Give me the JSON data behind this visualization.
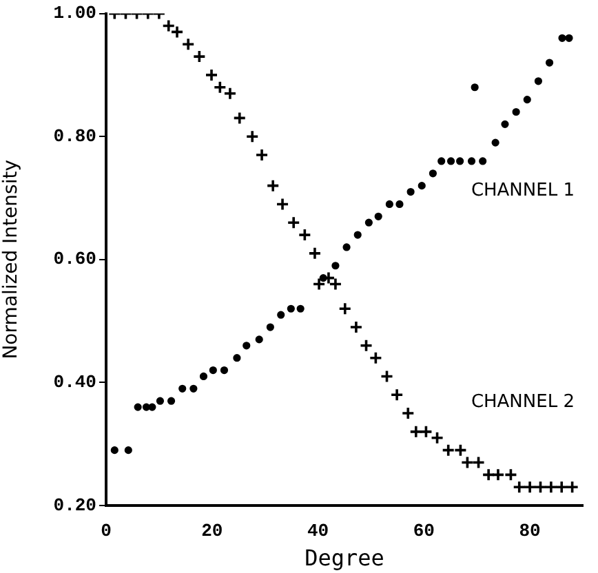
{
  "chart_data": {
    "type": "scatter",
    "xlabel": "Degree",
    "ylabel": "Normalized Intensity",
    "xlim": [
      0,
      90
    ],
    "xticks": [
      0,
      20,
      40,
      60,
      80
    ],
    "ylim": [
      0.2,
      1.0
    ],
    "yticks": [
      {
        "value": 0.2,
        "label": "0.20"
      },
      {
        "value": 0.4,
        "label": "0.40"
      },
      {
        "value": 0.6,
        "label": "0.60"
      },
      {
        "value": 0.8,
        "label": "0.80"
      },
      {
        "value": 1.0,
        "label": "1.00"
      }
    ],
    "grid": false,
    "legend": false,
    "series": [
      {
        "name": "CHANNEL 1",
        "color": "#000000",
        "marker": "circle",
        "x": [
          1.6,
          4.2,
          6.0,
          7.6,
          8.7,
          10.2,
          12.3,
          14.4,
          16.5,
          18.4,
          20.2,
          22.3,
          24.7,
          26.5,
          28.9,
          31,
          33,
          34.9,
          36.7,
          41,
          43.3,
          45.4,
          47.5,
          49.6,
          51.4,
          53.5,
          55.4,
          57.5,
          59.6,
          61.7,
          63.3,
          65.1,
          66.8,
          69,
          71.1,
          69.6,
          73.5,
          75.3,
          77.4,
          79.5,
          81.6,
          83.7,
          86.1,
          87.4
        ],
        "values": [
          0.29,
          0.29,
          0.36,
          0.36,
          0.36,
          0.37,
          0.37,
          0.39,
          0.39,
          0.41,
          0.42,
          0.42,
          0.44,
          0.46,
          0.47,
          0.49,
          0.51,
          0.52,
          0.52,
          0.57,
          0.59,
          0.62,
          0.64,
          0.66,
          0.67,
          0.69,
          0.69,
          0.71,
          0.72,
          0.74,
          0.76,
          0.76,
          0.76,
          0.76,
          0.76,
          0.88,
          0.79,
          0.82,
          0.84,
          0.86,
          0.89,
          0.92,
          0.96,
          0.96
        ]
      },
      {
        "name": "CHANNEL 2",
        "color": "#000000",
        "marker": "cross",
        "x": [
          1.6,
          3.7,
          5.8,
          7.9,
          10,
          11.8,
          13.4,
          15.5,
          17.6,
          19.9,
          21.5,
          23.4,
          25.2,
          27.6,
          29.4,
          31.5,
          33.3,
          35.4,
          37.5,
          39.4,
          40.2,
          42,
          43.3,
          45.1,
          47.2,
          49.1,
          50.9,
          53,
          54.9,
          57,
          58.5,
          60.4,
          62.5,
          64.6,
          66.9,
          68.2,
          70.3,
          72.2,
          74,
          76.4,
          78,
          80,
          82,
          84,
          86,
          88
        ],
        "values": [
          1.0,
          1.0,
          1.0,
          1.0,
          1.0,
          0.98,
          0.97,
          0.95,
          0.93,
          0.9,
          0.88,
          0.87,
          0.83,
          0.8,
          0.77,
          0.72,
          0.69,
          0.66,
          0.64,
          0.61,
          0.56,
          0.57,
          0.56,
          0.52,
          0.49,
          0.46,
          0.44,
          0.41,
          0.38,
          0.35,
          0.32,
          0.32,
          0.31,
          0.29,
          0.29,
          0.27,
          0.27,
          0.25,
          0.25,
          0.25,
          0.23,
          0.23,
          0.23,
          0.23,
          0.23,
          0.23
        ]
      }
    ]
  }
}
